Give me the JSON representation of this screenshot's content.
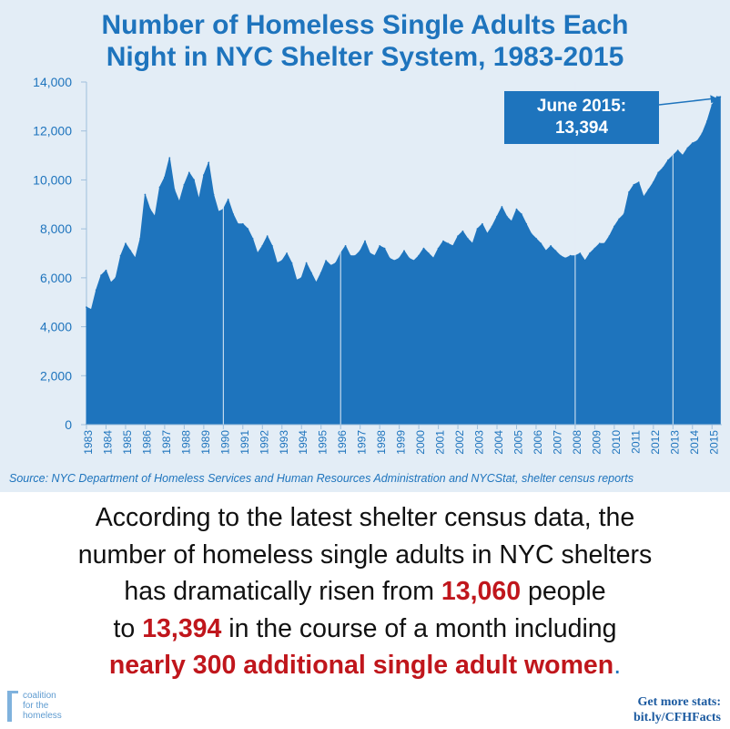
{
  "colors": {
    "accent": "#1e74bd",
    "highlight": "#c0161c",
    "panel_bg": "#e3edf6"
  },
  "chart_data": {
    "type": "area",
    "title": [
      "Number of Homeless Single Adults Each",
      "Night in NYC Shelter System, 1983-2015"
    ],
    "xlabel": "",
    "ylabel": "",
    "ylim": [
      0,
      14000
    ],
    "yticks": [
      0,
      2000,
      4000,
      6000,
      8000,
      10000,
      12000,
      14000
    ],
    "ytick_labels": [
      "0",
      "2,000",
      "4,000",
      "6,000",
      "8,000",
      "10,000",
      "12,000",
      "14,000"
    ],
    "xlim": [
      1983,
      2015.5
    ],
    "year_ticks": [
      "1983",
      "1984",
      "1985",
      "1986",
      "1987",
      "1988",
      "1989",
      "1990",
      "1991",
      "1992",
      "1993",
      "1994",
      "1995",
      "1996",
      "1997",
      "1998",
      "1999",
      "2000",
      "2001",
      "2002",
      "2003",
      "2004",
      "2005",
      "2006",
      "2007",
      "2008",
      "2009",
      "2010",
      "2011",
      "2012",
      "2013",
      "2014",
      "2015"
    ],
    "grid": false,
    "series": [
      {
        "x": [
          1983.0,
          1983.25,
          1983.5,
          1983.75,
          1984.0,
          1984.25,
          1984.5,
          1984.75,
          1985.0,
          1985.25,
          1985.5,
          1985.75,
          1986.0,
          1986.25,
          1986.5,
          1986.75,
          1987.0,
          1987.25,
          1987.5,
          1987.75,
          1988.0,
          1988.25,
          1988.5,
          1988.75,
          1989.0,
          1989.25,
          1989.5,
          1989.75,
          1990.0,
          1990.25,
          1990.5,
          1990.75,
          1991.0,
          1991.25,
          1991.5,
          1991.75,
          1992.0,
          1992.25,
          1992.5,
          1992.75,
          1993.0,
          1993.25,
          1993.5,
          1993.75,
          1994.0,
          1994.25,
          1994.5,
          1994.75,
          1995.0,
          1995.25,
          1995.5,
          1995.75,
          1996.0,
          1996.25,
          1996.5,
          1996.75,
          1997.0,
          1997.25,
          1997.5,
          1997.75,
          1998.0,
          1998.25,
          1998.5,
          1998.75,
          1999.0,
          1999.25,
          1999.5,
          1999.75,
          2000.0,
          2000.25,
          2000.5,
          2000.75,
          2001.0,
          2001.25,
          2001.5,
          2001.75,
          2002.0,
          2002.25,
          2002.5,
          2002.75,
          2003.0,
          2003.25,
          2003.5,
          2003.75,
          2004.0,
          2004.25,
          2004.5,
          2004.75,
          2005.0,
          2005.25,
          2005.5,
          2005.75,
          2006.0,
          2006.25,
          2006.5,
          2006.75,
          2007.0,
          2007.25,
          2007.5,
          2007.75,
          2008.0,
          2008.25,
          2008.5,
          2008.75,
          2009.0,
          2009.25,
          2009.5,
          2009.75,
          2010.0,
          2010.25,
          2010.5,
          2010.75,
          2011.0,
          2011.25,
          2011.5,
          2011.75,
          2012.0,
          2012.25,
          2012.5,
          2012.75,
          2013.0,
          2013.25,
          2013.5,
          2013.75,
          2014.0,
          2014.25,
          2014.5,
          2014.75,
          2015.0,
          2015.25,
          2015.42
        ],
        "values": [
          4800,
          4700,
          5500,
          6100,
          6300,
          5800,
          6000,
          6900,
          7400,
          7100,
          6800,
          7600,
          9400,
          8800,
          8500,
          9700,
          10100,
          10900,
          9600,
          9100,
          9800,
          10300,
          10000,
          9200,
          10200,
          10700,
          9400,
          8700,
          8800,
          9200,
          8600,
          8200,
          8200,
          8000,
          7600,
          7000,
          7300,
          7700,
          7300,
          6600,
          6700,
          7000,
          6600,
          5900,
          6000,
          6600,
          6200,
          5800,
          6200,
          6700,
          6500,
          6600,
          7000,
          7300,
          6900,
          6900,
          7100,
          7500,
          7000,
          6900,
          7300,
          7200,
          6800,
          6700,
          6800,
          7100,
          6800,
          6700,
          6900,
          7200,
          7000,
          6800,
          7200,
          7500,
          7400,
          7300,
          7700,
          7900,
          7600,
          7400,
          8000,
          8200,
          7800,
          8100,
          8500,
          8900,
          8500,
          8300,
          8800,
          8600,
          8200,
          7800,
          7600,
          7400,
          7100,
          7300,
          7100,
          6900,
          6800,
          6900,
          6900,
          7000,
          6700,
          7000,
          7200,
          7400,
          7400,
          7700,
          8100,
          8400,
          8600,
          9500,
          9800,
          9900,
          9300,
          9600,
          9900,
          10300,
          10500,
          10800,
          11000,
          11200,
          11000,
          11300,
          11500,
          11600,
          11900,
          12400,
          13060,
          13394,
          13394
        ]
      }
    ],
    "annotation": {
      "label": "June 2015:",
      "value": "13,394",
      "x": 2015.42,
      "y": 13394
    },
    "source": "Source:  NYC Department of Homeless Services and Human Resources Administration and NYCStat, shelter census reports"
  },
  "body_text": {
    "line1": "According to the latest shelter census data, the",
    "line2": "number of homeless single adults in NYC shelters",
    "line3_pre": "has dramatically risen from ",
    "line3_hl": "13,060",
    "line3_post": " people",
    "line4_pre": "to ",
    "line4_hl": "13,394",
    "line4_post": " in the course of a month including",
    "line5_hl": "nearly 300 additional single adult women",
    "line5_post": "."
  },
  "logo": {
    "line1": "coalition",
    "line2": "for the",
    "line3": "homeless"
  },
  "more_stats": {
    "line1": "Get more stats:",
    "line2": "bit.ly/CFHFacts"
  }
}
